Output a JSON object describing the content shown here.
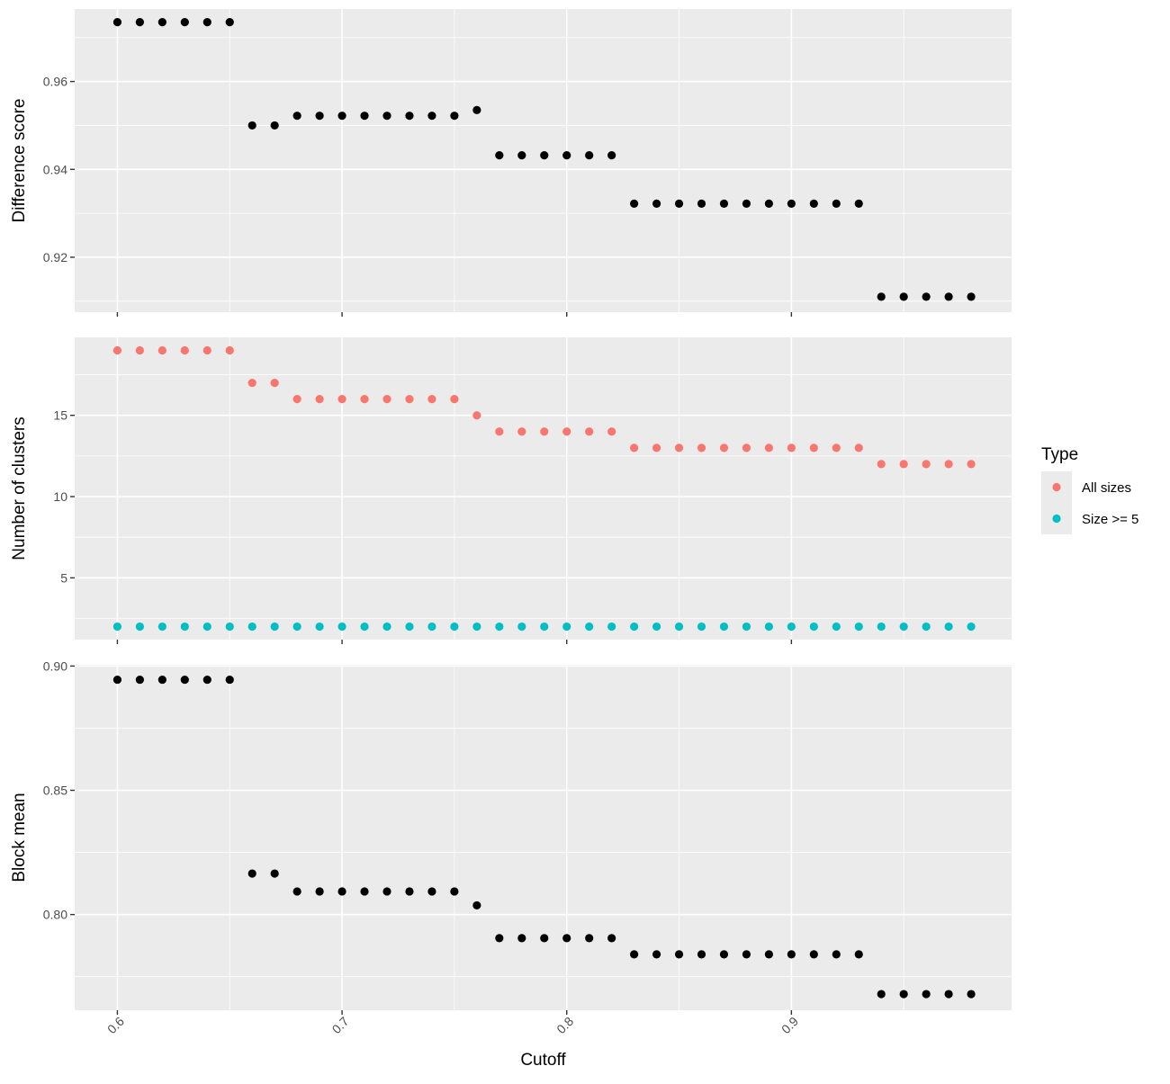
{
  "chart_data": {
    "type": "scatter",
    "x_label": "Cutoff",
    "x_ticks": [
      0.6,
      0.7,
      0.8,
      0.9
    ],
    "x_tick_labels": [
      "0.6",
      "0.7",
      "0.8",
      "0.9"
    ],
    "x_range": [
      0.581,
      0.998
    ],
    "x": [
      0.6,
      0.61,
      0.62,
      0.63,
      0.64,
      0.65,
      0.66,
      0.67,
      0.68,
      0.69,
      0.7,
      0.71,
      0.72,
      0.73,
      0.74,
      0.75,
      0.76,
      0.77,
      0.78,
      0.79,
      0.8,
      0.81,
      0.82,
      0.83,
      0.84,
      0.85,
      0.86,
      0.87,
      0.88,
      0.89,
      0.9,
      0.91,
      0.92,
      0.93,
      0.94,
      0.95,
      0.96,
      0.97,
      0.98
    ],
    "grid": true,
    "legend_position": "right",
    "panels": [
      {
        "y_label": "Difference score",
        "y_ticks": [
          0.92,
          0.94,
          0.96
        ],
        "y_tick_labels": [
          "0.92",
          "0.94",
          "0.96"
        ],
        "y_range": [
          0.9075,
          0.9765
        ],
        "series": [
          {
            "color": "#000000",
            "y": [
              0.9735,
              0.9735,
              0.9735,
              0.9735,
              0.9735,
              0.9735,
              0.95,
              0.95,
              0.9522,
              0.9522,
              0.9522,
              0.9522,
              0.9522,
              0.9522,
              0.9522,
              0.9522,
              0.9535,
              0.9432,
              0.9432,
              0.9432,
              0.9432,
              0.9432,
              0.9432,
              0.9322,
              0.9322,
              0.9322,
              0.9322,
              0.9322,
              0.9322,
              0.9322,
              0.9322,
              0.9322,
              0.9322,
              0.9322,
              0.911,
              0.911,
              0.911,
              0.911,
              0.911
            ]
          }
        ]
      },
      {
        "y_label": "Number of clusters",
        "y_ticks": [
          5,
          10,
          15
        ],
        "y_tick_labels": [
          "5",
          "10",
          "15"
        ],
        "y_range": [
          1.2,
          19.8
        ],
        "series": [
          {
            "name": "All sizes",
            "color": "#F8766D",
            "y": [
              19,
              19,
              19,
              19,
              19,
              19,
              17,
              17,
              16,
              16,
              16,
              16,
              16,
              16,
              16,
              16,
              15,
              14,
              14,
              14,
              14,
              14,
              14,
              13,
              13,
              13,
              13,
              13,
              13,
              13,
              13,
              13,
              13,
              13,
              12,
              12,
              12,
              12,
              12
            ]
          },
          {
            "name": "Size >= 5",
            "color": "#00BFC4",
            "y": [
              2,
              2,
              2,
              2,
              2,
              2,
              2,
              2,
              2,
              2,
              2,
              2,
              2,
              2,
              2,
              2,
              2,
              2,
              2,
              2,
              2,
              2,
              2,
              2,
              2,
              2,
              2,
              2,
              2,
              2,
              2,
              2,
              2,
              2,
              2,
              2,
              2,
              2,
              2
            ]
          }
        ]
      },
      {
        "y_label": "Block mean",
        "y_ticks": [
          0.8,
          0.85,
          0.9
        ],
        "y_tick_labels": [
          "0.80",
          "0.85",
          "0.90"
        ],
        "y_range": [
          0.7615,
          0.9005
        ],
        "series": [
          {
            "color": "#000000",
            "y": [
              0.8945,
              0.8945,
              0.8945,
              0.8945,
              0.8945,
              0.8945,
              0.8165,
              0.8165,
              0.8093,
              0.8093,
              0.8093,
              0.8093,
              0.8093,
              0.8093,
              0.8093,
              0.8093,
              0.8037,
              0.7905,
              0.7905,
              0.7905,
              0.7905,
              0.7905,
              0.7905,
              0.784,
              0.784,
              0.784,
              0.784,
              0.784,
              0.784,
              0.784,
              0.784,
              0.784,
              0.784,
              0.784,
              0.768,
              0.768,
              0.768,
              0.768,
              0.768
            ]
          }
        ]
      }
    ],
    "legend": {
      "title": "Type",
      "items": [
        {
          "label": "All sizes",
          "color": "#F8766D"
        },
        {
          "label": "Size >= 5",
          "color": "#00BFC4"
        }
      ]
    }
  }
}
